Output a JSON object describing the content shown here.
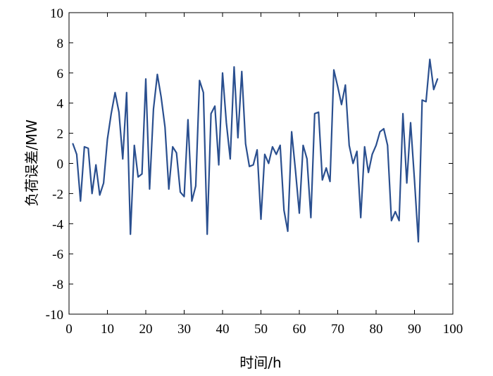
{
  "chart_data": {
    "type": "line",
    "title": "",
    "xlabel": "时间/h",
    "ylabel": "负荷误差/MW",
    "xlim": [
      0,
      100
    ],
    "ylim": [
      -10,
      10
    ],
    "x_ticks": [
      0,
      10,
      20,
      30,
      40,
      50,
      60,
      70,
      80,
      90,
      100
    ],
    "y_ticks": [
      -10,
      -8,
      -6,
      -4,
      -2,
      0,
      2,
      4,
      6,
      8,
      10
    ],
    "grid": false,
    "legend": "none",
    "line_color": "#2a4f8f",
    "series": [
      {
        "x": [
          1,
          2,
          3,
          4,
          5,
          6,
          7,
          8,
          9,
          10,
          11,
          12,
          13,
          14,
          15,
          16,
          17,
          18,
          19,
          20,
          21,
          22,
          23,
          24,
          25,
          26,
          27,
          28,
          29,
          30,
          31,
          32,
          33,
          34,
          35,
          36,
          37,
          38,
          39,
          40,
          41,
          42,
          43,
          44,
          45,
          46,
          47,
          48,
          49,
          50,
          51,
          52,
          53,
          54,
          55,
          56,
          57,
          58,
          59,
          60,
          61,
          62,
          63,
          64,
          65,
          66,
          67,
          68,
          69,
          70,
          71,
          72,
          73,
          74,
          75,
          76,
          77,
          78,
          79,
          80,
          81,
          82,
          83,
          84,
          85,
          86,
          87,
          88,
          89,
          90,
          91,
          92,
          93,
          94,
          95,
          96
        ],
        "values": [
          1.3,
          0.6,
          -2.5,
          1.1,
          1.0,
          -2.0,
          -0.1,
          -2.1,
          -1.3,
          1.6,
          3.3,
          4.7,
          3.4,
          0.3,
          4.7,
          -4.7,
          1.2,
          -0.9,
          -0.7,
          5.6,
          -1.7,
          3.6,
          5.9,
          4.4,
          2.4,
          -1.7,
          1.1,
          0.7,
          -1.9,
          -2.2,
          2.9,
          -2.5,
          -1.5,
          5.5,
          4.7,
          -4.7,
          3.3,
          3.8,
          -0.1,
          6.0,
          2.7,
          0.3,
          6.4,
          1.7,
          6.1,
          1.3,
          -0.2,
          -0.1,
          0.9,
          -3.7,
          0.6,
          0.0,
          1.1,
          0.6,
          1.2,
          -3.1,
          -4.5,
          2.1,
          -0.5,
          -3.3,
          1.2,
          0.3,
          -3.6,
          3.3,
          3.4,
          -1.1,
          -0.3,
          -1.2,
          6.2,
          5.1,
          3.9,
          5.2,
          1.2,
          0.0,
          0.8,
          -3.6,
          1.1,
          -0.6,
          0.6,
          1.2,
          2.1,
          2.3,
          1.2,
          -3.8,
          -3.2,
          -3.8,
          3.3,
          -1.3,
          2.7,
          -1.1,
          -5.2,
          4.2,
          4.1,
          6.9,
          4.9,
          5.6
        ]
      }
    ]
  }
}
